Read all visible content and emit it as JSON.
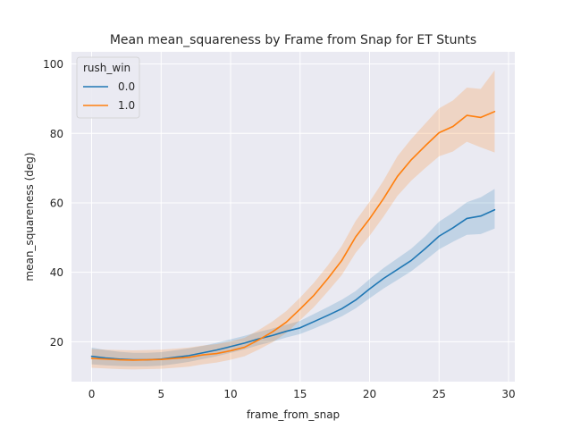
{
  "chart_data": {
    "type": "line",
    "title": "Mean mean_squareness by Frame from Snap for ET Stunts",
    "xlabel": "frame_from_snap",
    "ylabel": "mean_squareness (deg)",
    "xlim": [
      -1.45,
      30.45
    ],
    "ylim": [
      8.5,
      103.5
    ],
    "x_ticks": [
      0,
      5,
      10,
      15,
      20,
      25,
      30
    ],
    "y_ticks": [
      20,
      40,
      60,
      80,
      100
    ],
    "grid": true,
    "legend": {
      "title": "rush_win",
      "placement": "top-left"
    },
    "x": [
      0,
      1,
      2,
      3,
      4,
      5,
      6,
      7,
      8,
      9,
      10,
      11,
      12,
      13,
      14,
      15,
      16,
      17,
      18,
      19,
      20,
      21,
      22,
      23,
      24,
      25,
      26,
      27,
      28,
      29
    ],
    "series": [
      {
        "name": "0.0",
        "color": "#1f77b4",
        "values": [
          15.8,
          15.3,
          15.0,
          14.8,
          14.8,
          15.0,
          15.5,
          16.0,
          16.8,
          17.6,
          18.6,
          19.6,
          20.8,
          21.8,
          23.0,
          24.0,
          25.8,
          27.6,
          29.5,
          32.0,
          35.2,
          38.2,
          40.8,
          43.4,
          46.8,
          50.4,
          52.8,
          55.5,
          56.2,
          58.0
        ],
        "ci_lower": [
          13.5,
          13.2,
          13.0,
          12.9,
          12.9,
          13.1,
          13.6,
          14.2,
          15.0,
          15.8,
          16.8,
          17.8,
          19.0,
          20.0,
          21.2,
          22.2,
          23.8,
          25.5,
          27.3,
          29.6,
          32.5,
          35.3,
          37.8,
          40.3,
          43.4,
          46.6,
          48.8,
          50.8,
          51.0,
          52.6
        ],
        "ci_upper": [
          18.3,
          17.6,
          17.1,
          16.8,
          16.8,
          17.0,
          17.5,
          18.1,
          18.8,
          19.7,
          20.7,
          21.7,
          22.8,
          23.8,
          24.9,
          26.0,
          28.0,
          30.0,
          32.1,
          34.6,
          38.0,
          41.2,
          44.0,
          46.8,
          50.4,
          54.6,
          57.2,
          60.2,
          61.6,
          64.0
        ]
      },
      {
        "name": "1.0",
        "color": "#ff7f0e",
        "values": [
          15.2,
          15.0,
          14.8,
          14.7,
          14.8,
          14.9,
          15.2,
          15.5,
          16.2,
          16.6,
          17.4,
          18.4,
          20.5,
          22.8,
          25.6,
          29.4,
          33.4,
          38.2,
          43.4,
          50.2,
          55.4,
          61.2,
          67.6,
          72.4,
          76.4,
          80.2,
          82.0,
          85.2,
          84.6,
          86.3
        ],
        "ci_lower": [
          12.5,
          12.3,
          12.1,
          12.0,
          12.1,
          12.2,
          12.5,
          12.8,
          13.5,
          14.0,
          14.8,
          15.8,
          17.7,
          19.8,
          22.5,
          26.2,
          30.0,
          34.5,
          39.2,
          45.6,
          50.5,
          56.0,
          62.0,
          66.4,
          70.0,
          73.4,
          74.8,
          77.6,
          76.0,
          74.5
        ],
        "ci_upper": [
          17.9,
          17.7,
          17.6,
          17.5,
          17.6,
          17.7,
          18.0,
          18.3,
          18.9,
          19.3,
          20.1,
          21.1,
          23.3,
          25.8,
          28.8,
          32.7,
          37.0,
          42.0,
          47.6,
          54.8,
          60.3,
          66.4,
          73.4,
          78.4,
          82.8,
          87.2,
          89.5,
          93.2,
          92.8,
          98.2
        ]
      }
    ]
  }
}
